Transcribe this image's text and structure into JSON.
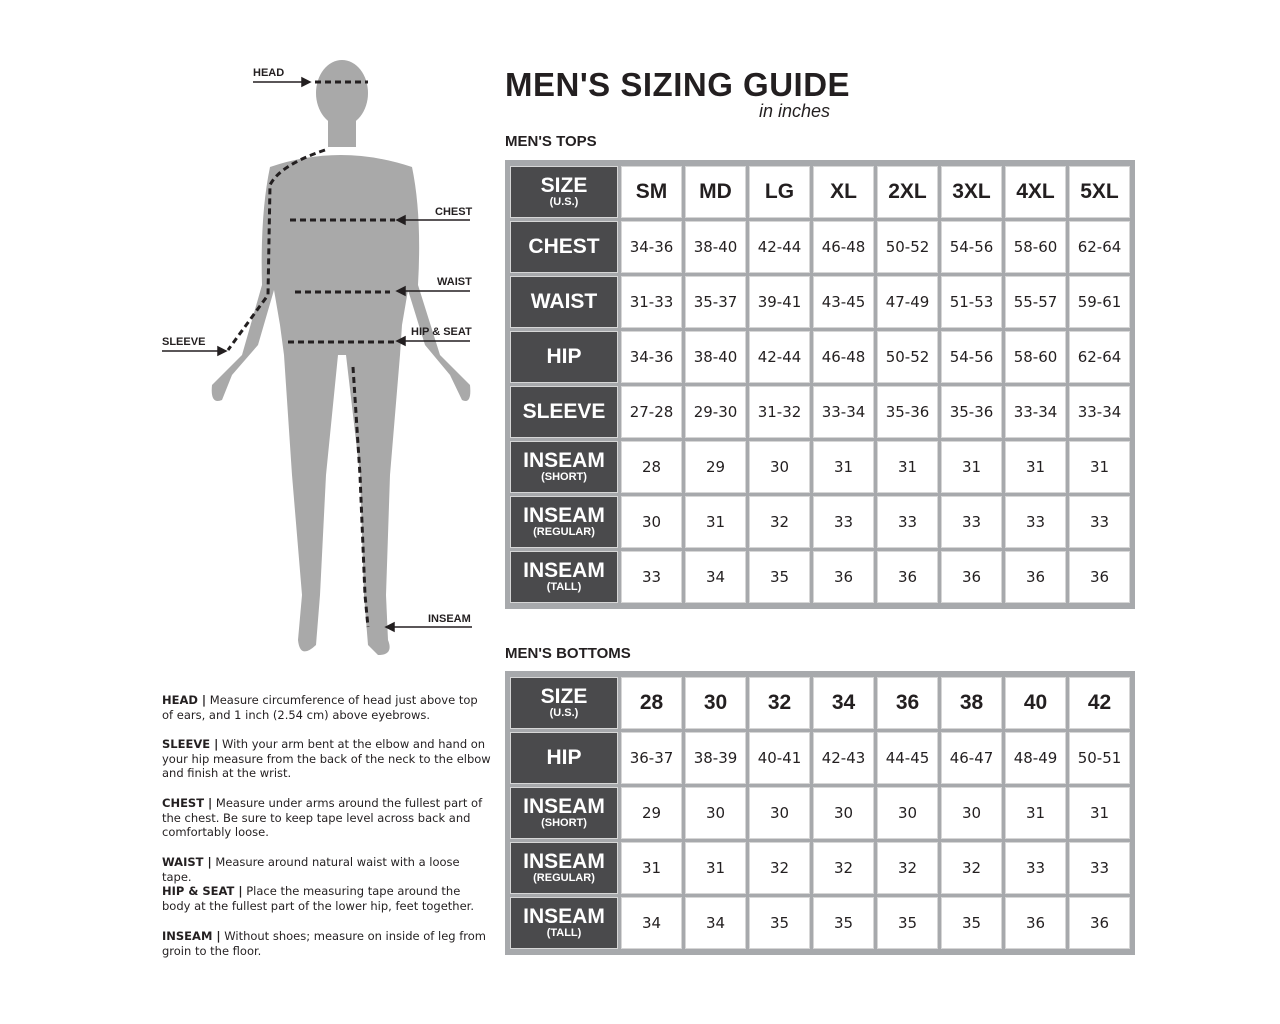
{
  "title": "MEN'S SIZING GUIDE",
  "subtitle": "in inches",
  "colors": {
    "label_bg": "#4a4a4c",
    "table_border": "#a7a9ac",
    "figure": "#a9a9a9"
  },
  "figure_labels": {
    "head": "HEAD",
    "chest": "CHEST",
    "waist": "WAIST",
    "hip_seat": "HIP & SEAT",
    "sleeve": "SLEEVE",
    "inseam": "INSEAM"
  },
  "tops": {
    "heading": "MEN'S TOPS",
    "size_label": "SIZE",
    "size_sub": "(U.S.)",
    "sizes": [
      "SM",
      "MD",
      "LG",
      "XL",
      "2XL",
      "3XL",
      "4XL",
      "5XL"
    ],
    "rows": [
      {
        "label": "CHEST",
        "sub": "",
        "values": [
          "34-36",
          "38-40",
          "42-44",
          "46-48",
          "50-52",
          "54-56",
          "58-60",
          "62-64"
        ]
      },
      {
        "label": "WAIST",
        "sub": "",
        "values": [
          "31-33",
          "35-37",
          "39-41",
          "43-45",
          "47-49",
          "51-53",
          "55-57",
          "59-61"
        ]
      },
      {
        "label": "HIP",
        "sub": "",
        "values": [
          "34-36",
          "38-40",
          "42-44",
          "46-48",
          "50-52",
          "54-56",
          "58-60",
          "62-64"
        ]
      },
      {
        "label": "SLEEVE",
        "sub": "",
        "values": [
          "27-28",
          "29-30",
          "31-32",
          "33-34",
          "35-36",
          "35-36",
          "33-34",
          "33-34"
        ]
      },
      {
        "label": "INSEAM",
        "sub": "(SHORT)",
        "values": [
          "28",
          "29",
          "30",
          "31",
          "31",
          "31",
          "31",
          "31"
        ]
      },
      {
        "label": "INSEAM",
        "sub": "(REGULAR)",
        "values": [
          "30",
          "31",
          "32",
          "33",
          "33",
          "33",
          "33",
          "33"
        ]
      },
      {
        "label": "INSEAM",
        "sub": "(TALL)",
        "values": [
          "33",
          "34",
          "35",
          "36",
          "36",
          "36",
          "36",
          "36"
        ]
      }
    ]
  },
  "bottoms": {
    "heading": "MEN'S BOTTOMS",
    "size_label": "SIZE",
    "size_sub": "(U.S.)",
    "sizes": [
      "28",
      "30",
      "32",
      "34",
      "36",
      "38",
      "40",
      "42"
    ],
    "rows": [
      {
        "label": "HIP",
        "sub": "",
        "values": [
          "36-37",
          "38-39",
          "40-41",
          "42-43",
          "44-45",
          "46-47",
          "48-49",
          "50-51"
        ]
      },
      {
        "label": "INSEAM",
        "sub": "(SHORT)",
        "values": [
          "29",
          "30",
          "30",
          "30",
          "30",
          "30",
          "31",
          "31"
        ]
      },
      {
        "label": "INSEAM",
        "sub": "(REGULAR)",
        "values": [
          "31",
          "31",
          "32",
          "32",
          "32",
          "32",
          "33",
          "33"
        ]
      },
      {
        "label": "INSEAM",
        "sub": "(TALL)",
        "values": [
          "34",
          "34",
          "35",
          "35",
          "35",
          "35",
          "36",
          "36"
        ]
      }
    ]
  },
  "descriptions": [
    {
      "term": "HEAD |",
      "text": " Measure circumference of head just above top of ears, and 1 inch (2.54 cm) above eyebrows."
    },
    {
      "term": "SLEEVE |",
      "text": " With your arm bent at the elbow and hand on your hip measure from the back of the neck to the elbow and finish at the wrist."
    },
    {
      "term": "CHEST |",
      "text": " Measure under arms around the fullest part of the chest. Be sure to keep tape level across back and comfortably loose."
    },
    {
      "term": "WAIST |",
      "text": " Measure around natural waist with a loose tape."
    },
    {
      "term": "HIP & SEAT |",
      "text": " Place the measuring tape around the body at the fullest part of the lower hip, feet together."
    },
    {
      "term": "INSEAM |",
      "text": " Without shoes; measure on inside of leg from groin to the floor."
    }
  ]
}
